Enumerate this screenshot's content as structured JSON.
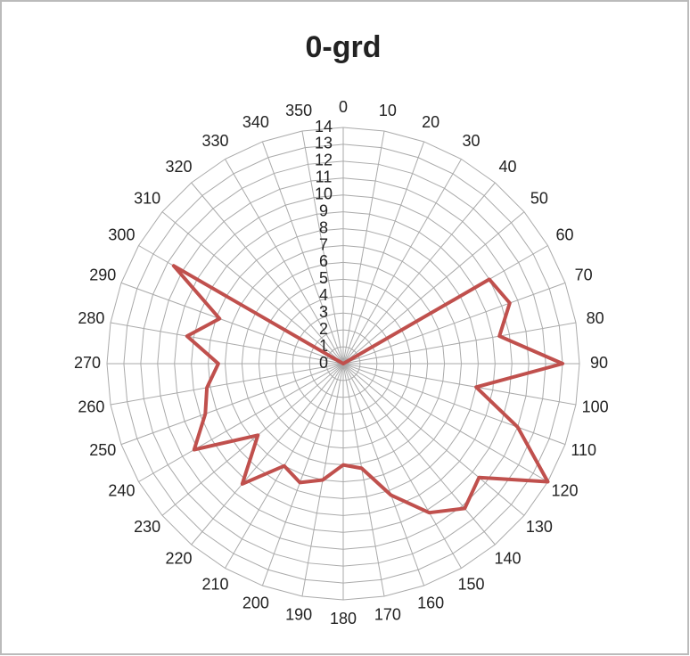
{
  "chart_data": {
    "type": "radar",
    "title": "0-grd",
    "categories": [
      "0",
      "10",
      "20",
      "30",
      "40",
      "50",
      "60",
      "70",
      "80",
      "90",
      "100",
      "110",
      "120",
      "130",
      "140",
      "150",
      "160",
      "170",
      "180",
      "190",
      "200",
      "210",
      "220",
      "230",
      "240",
      "250",
      "260",
      "270",
      "280",
      "290",
      "300",
      "310",
      "320",
      "330",
      "340",
      "350"
    ],
    "series": [
      {
        "name": "0-grd",
        "color": "#c0504d",
        "values": [
          0,
          0,
          0,
          0,
          0,
          0,
          10,
          10.5,
          9.4,
          13,
          8,
          11,
          14,
          10.5,
          11.2,
          10.2,
          8.3,
          6.3,
          6,
          7,
          7.5,
          7,
          9.3,
          6.6,
          10.2,
          8.7,
          8.2,
          7.4,
          9.4,
          7.8,
          11.6,
          0,
          0,
          0,
          0,
          0
        ]
      }
    ],
    "ylim": [
      0,
      14
    ],
    "yticks": [
      0,
      1,
      2,
      3,
      4,
      5,
      6,
      7,
      8,
      9,
      10,
      11,
      12,
      13,
      14
    ],
    "grid": true,
    "legend": false
  }
}
